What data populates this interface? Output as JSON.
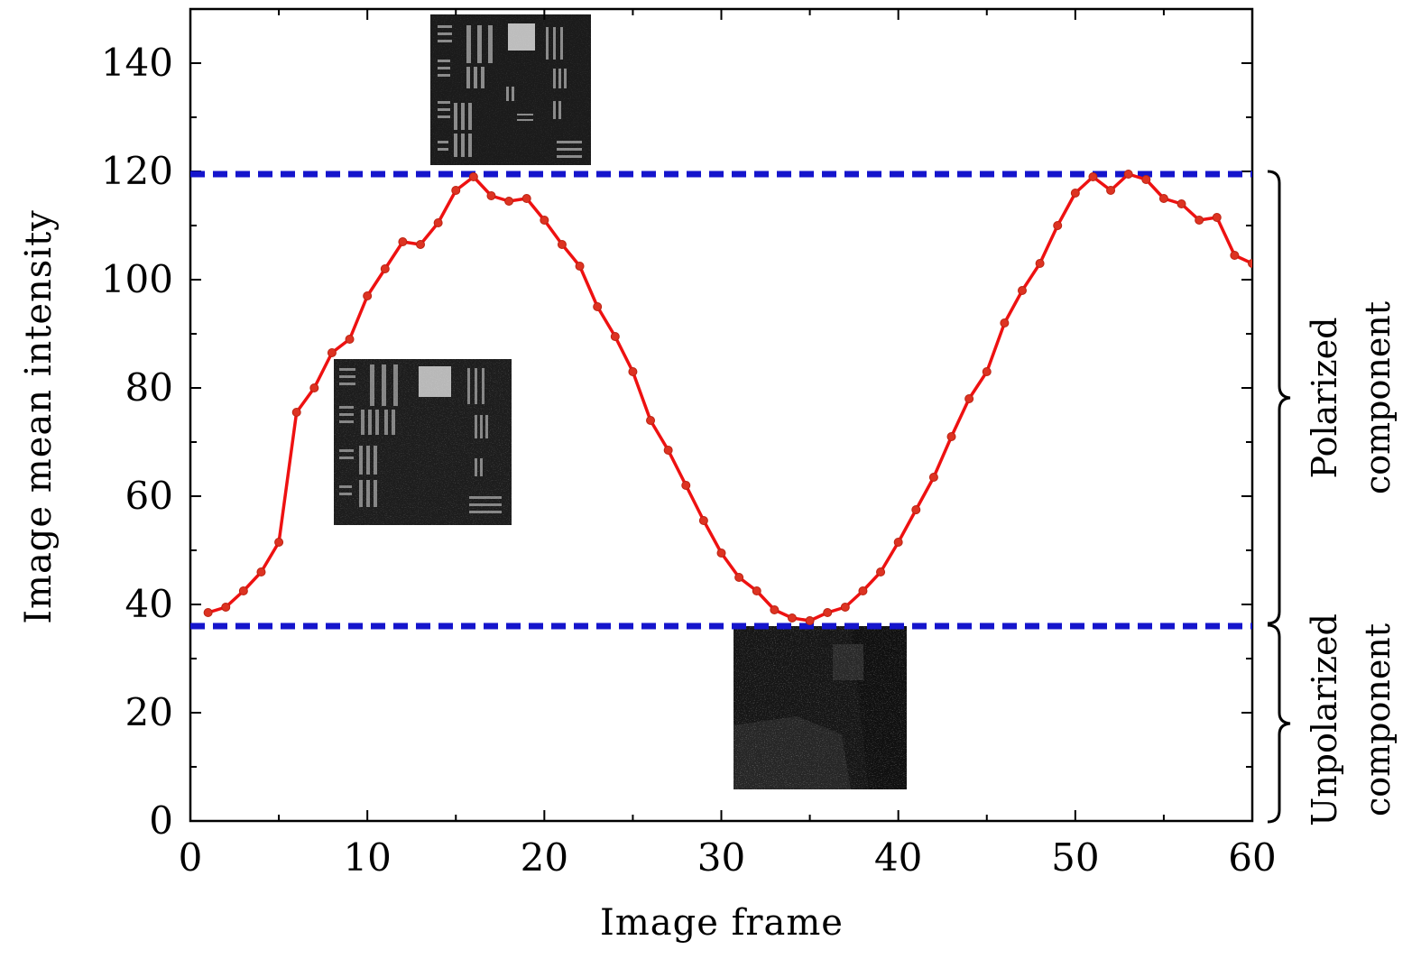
{
  "chart_data": {
    "type": "line",
    "xlabel": "Image frame",
    "ylabel": "Image mean intensity",
    "xlim": [
      0,
      60
    ],
    "ylim": [
      0,
      150
    ],
    "xticks": [
      0,
      10,
      20,
      30,
      40,
      50,
      60
    ],
    "yticks": [
      0,
      20,
      40,
      60,
      80,
      100,
      120,
      140
    ],
    "grid": false,
    "series": [
      {
        "color": "#ee1111",
        "x": [
          1,
          2,
          3,
          4,
          5,
          6,
          7,
          8,
          9,
          10,
          11,
          12,
          13,
          14,
          15,
          16,
          17,
          18,
          19,
          20,
          21,
          22,
          23,
          24,
          25,
          26,
          27,
          28,
          29,
          30,
          31,
          32,
          33,
          34,
          35,
          36,
          37,
          38,
          39,
          40,
          41,
          42,
          43,
          44,
          45,
          46,
          47,
          48,
          49,
          50,
          51,
          52,
          53,
          54,
          55,
          56,
          57,
          58,
          59,
          60
        ],
        "y": [
          38.5,
          39.5,
          42.5,
          46,
          51.5,
          75.5,
          80,
          86.5,
          89,
          97,
          102,
          107,
          106.5,
          110.5,
          116.5,
          119,
          115.5,
          114.5,
          115,
          111,
          106.5,
          102.5,
          95,
          89.5,
          83,
          74,
          68.5,
          62,
          55.5,
          49.5,
          45,
          42.5,
          39,
          37.5,
          37,
          38.5,
          39.5,
          42.5,
          46,
          51.5,
          57.5,
          63.5,
          71,
          78,
          83,
          92,
          98,
          103,
          110,
          116,
          119,
          116.5,
          119.5,
          118.5,
          115,
          114,
          111,
          111.5,
          104.5,
          103
        ]
      }
    ],
    "reference_lines": [
      {
        "y": 119.5,
        "color": "#1515cc",
        "style": "dashed"
      },
      {
        "y": 36,
        "color": "#1515cc",
        "style": "dashed"
      }
    ],
    "brace_labels": [
      {
        "lines": [
          "Polarized",
          "component"
        ]
      },
      {
        "lines": [
          "Unpolarized",
          "component"
        ]
      }
    ]
  }
}
